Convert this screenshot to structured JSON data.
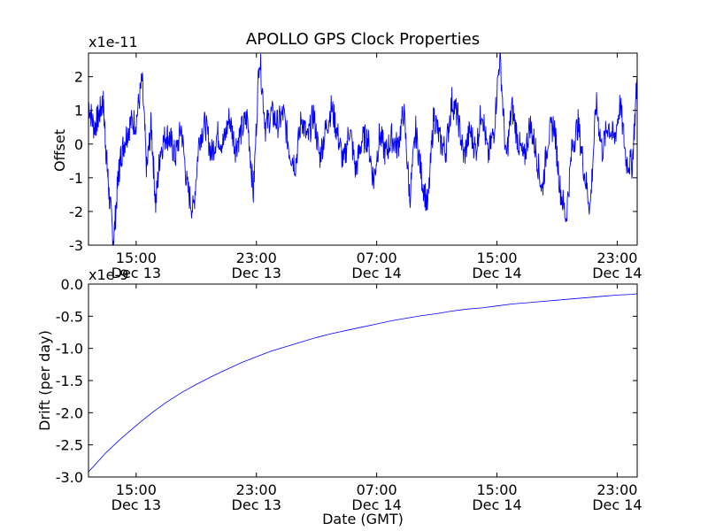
{
  "figure": {
    "title": "APOLLO GPS Clock Properties",
    "line_color": "#0000ff"
  },
  "chart_data": [
    {
      "type": "line",
      "title": "APOLLO GPS Clock Properties",
      "xlabel": "",
      "ylabel": "Offset",
      "y_multiplier": "x1e-11",
      "x_range": [
        "Dec 13 11:50",
        "Dec 15 00:20"
      ],
      "xlim": [
        11.83,
        48.33
      ],
      "ylim": [
        -3,
        2.7
      ],
      "grid": false,
      "x_ticks": [
        {
          "value": 15,
          "time": "15:00",
          "date": "Dec 13"
        },
        {
          "value": 23,
          "time": "23:00",
          "date": "Dec 13"
        },
        {
          "value": 31,
          "time": "07:00",
          "date": "Dec 14"
        },
        {
          "value": 39,
          "time": "15:00",
          "date": "Dec 14"
        },
        {
          "value": 47,
          "time": "23:00",
          "date": "Dec 14"
        }
      ],
      "y_ticks": [
        2,
        1,
        0,
        -1,
        -2,
        -3
      ],
      "y_tick_labels": [
        "2",
        "1",
        "0",
        "-1",
        "-2",
        "-3"
      ],
      "series": [
        {
          "x_hours_from_dec13_0000": [
            11.83,
            12.2,
            12.5,
            12.8,
            13.0,
            13.2,
            13.5,
            13.8,
            14.0,
            14.3,
            14.6,
            15.0,
            15.4,
            15.7,
            16.0,
            16.3,
            16.6,
            17.0,
            17.3,
            17.6,
            18.0,
            18.4,
            18.8,
            19.2,
            19.6,
            20.0,
            20.4,
            20.8,
            21.2,
            21.6,
            22.0,
            22.4,
            22.8,
            23.2,
            23.6,
            24.0,
            24.4,
            24.8,
            25.2,
            25.6,
            26.0,
            26.4,
            26.8,
            27.2,
            27.6,
            28.0,
            28.4,
            28.8,
            29.2,
            29.6,
            30.0,
            30.4,
            30.8,
            31.2,
            31.6,
            32.0,
            32.4,
            32.8,
            33.2,
            33.6,
            34.0,
            34.4,
            34.8,
            35.2,
            35.6,
            36.0,
            36.4,
            36.8,
            37.2,
            37.6,
            38.0,
            38.4,
            38.8,
            39.2,
            39.6,
            40.0,
            40.4,
            40.8,
            41.2,
            41.6,
            42.0,
            42.4,
            42.8,
            43.2,
            43.6,
            44.0,
            44.4,
            44.8,
            45.2,
            45.6,
            46.0,
            46.4,
            46.8,
            47.2,
            47.6,
            48.0,
            48.33
          ],
          "values": [
            1.2,
            0.5,
            0.8,
            1.3,
            -0.2,
            -1.5,
            -2.9,
            -1.0,
            -0.3,
            0.2,
            0.6,
            0.7,
            1.9,
            -0.8,
            0.6,
            -1.8,
            -0.2,
            0.3,
            0.1,
            -0.4,
            0.5,
            -1.3,
            -2.0,
            0.2,
            0.6,
            -0.3,
            0.3,
            0.0,
            0.8,
            -0.1,
            0.4,
            0.8,
            -1.5,
            2.7,
            0.5,
            0.9,
            0.6,
            0.9,
            -0.2,
            -0.6,
            0.8,
            0.1,
            0.9,
            -0.4,
            0.4,
            1.1,
            0.3,
            -0.6,
            0.5,
            -0.8,
            0.1,
            0.2,
            -1.1,
            0.3,
            -0.3,
            0.2,
            -0.1,
            1.0,
            -1.6,
            0.4,
            -1.0,
            -1.9,
            0.9,
            0.1,
            -0.2,
            1.3,
            0.8,
            -0.4,
            0.4,
            -0.2,
            1.1,
            -0.4,
            0.4,
            2.7,
            -0.5,
            1.1,
            0.1,
            -0.5,
            0.6,
            -0.2,
            -1.4,
            0.2,
            0.6,
            -1.3,
            -2.2,
            -0.1,
            0.6,
            -0.8,
            -1.9,
            1.2,
            -0.2,
            0.6,
            0.1,
            1.2,
            -0.5,
            -0.6,
            2.0
          ]
        }
      ]
    },
    {
      "type": "line",
      "title": "",
      "xlabel": "Date (GMT)",
      "ylabel": "Drift (per day)",
      "y_multiplier": "x1e-9",
      "x_range": [
        "Dec 13 11:50",
        "Dec 15 00:20"
      ],
      "xlim": [
        11.83,
        48.33
      ],
      "ylim": [
        -3.0,
        0.0
      ],
      "grid": false,
      "x_ticks": [
        {
          "value": 15,
          "time": "15:00",
          "date": "Dec 13"
        },
        {
          "value": 23,
          "time": "23:00",
          "date": "Dec 13"
        },
        {
          "value": 31,
          "time": "07:00",
          "date": "Dec 14"
        },
        {
          "value": 39,
          "time": "15:00",
          "date": "Dec 14"
        },
        {
          "value": 47,
          "time": "23:00",
          "date": "Dec 14"
        }
      ],
      "y_ticks": [
        0.0,
        -0.5,
        -1.0,
        -1.5,
        -2.0,
        -2.5,
        -3.0
      ],
      "y_tick_labels": [
        "0.0",
        "-0.5",
        "-1.0",
        "-1.5",
        "-2.0",
        "-2.5",
        "-3.0"
      ],
      "series": [
        {
          "x_hours_from_dec13_0000": [
            11.83,
            13.0,
            14.0,
            15.0,
            16.0,
            17.0,
            18.0,
            19.0,
            20.0,
            21.0,
            22.0,
            23.0,
            24.0,
            25.0,
            26.0,
            27.0,
            28.0,
            29.0,
            30.0,
            31.0,
            32.0,
            33.0,
            34.0,
            35.0,
            36.0,
            37.0,
            38.0,
            39.0,
            40.0,
            41.0,
            42.0,
            43.0,
            44.0,
            45.0,
            46.0,
            47.0,
            48.0,
            48.33
          ],
          "values": [
            -2.92,
            -2.62,
            -2.4,
            -2.2,
            -2.01,
            -1.84,
            -1.69,
            -1.56,
            -1.44,
            -1.33,
            -1.22,
            -1.13,
            -1.04,
            -0.97,
            -0.9,
            -0.83,
            -0.77,
            -0.72,
            -0.67,
            -0.62,
            -0.57,
            -0.53,
            -0.49,
            -0.46,
            -0.42,
            -0.39,
            -0.37,
            -0.34,
            -0.31,
            -0.29,
            -0.27,
            -0.25,
            -0.23,
            -0.21,
            -0.19,
            -0.17,
            -0.16,
            -0.15
          ]
        }
      ]
    }
  ]
}
